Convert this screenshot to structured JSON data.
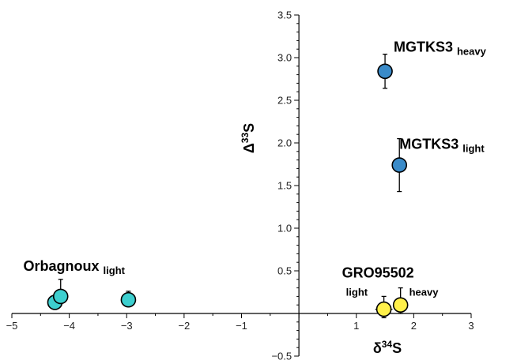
{
  "chart_data": {
    "type": "scatter",
    "title": "",
    "xlabel": "δ34S",
    "ylabel": "Δ33S",
    "xlim": [
      -5,
      3
    ],
    "ylim": [
      -0.5,
      3.5
    ],
    "x_ticks": [
      -5,
      -4,
      -3,
      -2,
      -1,
      1,
      2,
      3
    ],
    "y_ticks": [
      -0.5,
      0.5,
      1.0,
      1.5,
      2.0,
      2.5,
      3.0,
      3.5
    ],
    "grid": false,
    "legend": "none",
    "series": [
      {
        "color": "#3a8bc9",
        "points": [
          {
            "x": 1.5,
            "y": 2.84,
            "yerr_low": 0.2,
            "yerr_high": 0.2,
            "xerr": 0.1
          },
          {
            "x": 1.75,
            "y": 1.74,
            "yerr_low": 0.31,
            "yerr_high": 0.31,
            "xerr": 0.1
          }
        ]
      },
      {
        "color": "#3dcfcf",
        "points": [
          {
            "x": -4.25,
            "y": 0.13,
            "yerr_low": 0,
            "yerr_high": 0,
            "xerr": 0
          },
          {
            "x": -4.15,
            "y": 0.2,
            "yerr_low": 0,
            "yerr_high": 0.2,
            "xerr": 0
          },
          {
            "x": -2.97,
            "y": 0.16,
            "yerr_low": 0,
            "yerr_high": 0.1,
            "xerr": 0
          }
        ]
      },
      {
        "color": "#fff04a",
        "points": [
          {
            "x": 1.48,
            "y": 0.05,
            "yerr_low": 0.1,
            "yerr_high": 0.15,
            "xerr": 0.15
          },
          {
            "x": 1.77,
            "y": 0.1,
            "yerr_low": 0.1,
            "yerr_high": 0.2,
            "xerr": 0.12
          }
        ]
      }
    ],
    "annotations": [
      {
        "id": "mgtks3-heavy",
        "main": "MGTKS3",
        "sub": "heavy",
        "x": 1.65,
        "y": 3.07
      },
      {
        "id": "mgtks3-light",
        "main": "MGTKS3",
        "sub": "light",
        "x": 1.75,
        "y": 1.93
      },
      {
        "id": "orbagnoux-light",
        "main": "Orbagnoux",
        "sub": "light",
        "x": -4.8,
        "y": 0.5
      },
      {
        "id": "gro95502",
        "main": "GRO95502",
        "sub": "",
        "x": 0.75,
        "y": 0.42
      },
      {
        "id": "gro-light",
        "main": "",
        "sub": "light",
        "x": 0.82,
        "y": 0.21
      },
      {
        "id": "gro-heavy",
        "main": "",
        "sub": "heavy",
        "x": 1.92,
        "y": 0.21
      }
    ]
  }
}
